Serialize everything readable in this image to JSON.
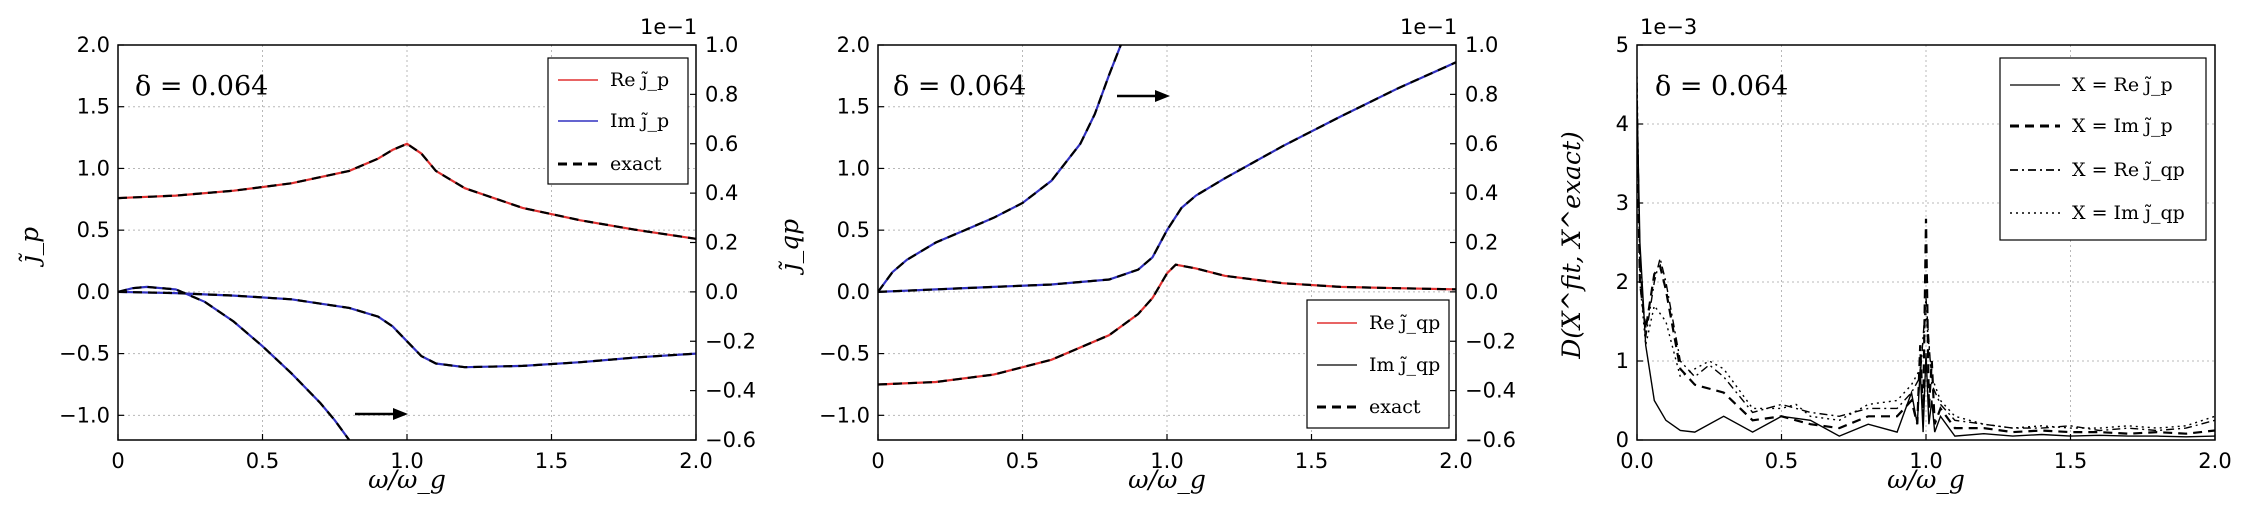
{
  "chart_data": [
    {
      "type": "line",
      "id": "jp",
      "annotation": "δ = 0.064",
      "xlabel": "ω/ω_g",
      "ylabel": "j̃_p",
      "xlim": [
        0,
        2.0
      ],
      "ylim": [
        -1.2,
        2.0
      ],
      "xticks": [
        "0",
        "0.5",
        "1.0",
        "1.5",
        "2.0"
      ],
      "yticks": [
        "−1.0",
        "−0.5",
        "0.0",
        "0.5",
        "1.0",
        "1.5",
        "2.0"
      ],
      "y2lim": [
        -0.6,
        1.0
      ],
      "y2ticks": [
        "−0.6",
        "−0.4",
        "−0.2",
        "0.0",
        "0.2",
        "0.4",
        "0.6",
        "0.8",
        "1.0"
      ],
      "y2_multiplier": "1e−1",
      "arrow": "right",
      "grid": true,
      "legend": {
        "position": "top-right",
        "entries": [
          "Re j̃_p",
          "Im j̃_p",
          "exact"
        ]
      },
      "series": [
        {
          "name": "Re j̃_p",
          "color": "#e03030",
          "axis": "left",
          "x": [
            0,
            0.2,
            0.4,
            0.6,
            0.8,
            0.9,
            0.95,
            1.0,
            1.05,
            1.1,
            1.2,
            1.4,
            1.6,
            1.8,
            2.0
          ],
          "y": [
            0.76,
            0.78,
            0.82,
            0.88,
            0.98,
            1.08,
            1.15,
            1.2,
            1.12,
            0.98,
            0.84,
            0.68,
            0.58,
            0.5,
            0.43
          ]
        },
        {
          "name": "Im j̃_p",
          "color": "#3030c0",
          "axis": "left",
          "x": [
            0,
            0.2,
            0.4,
            0.6,
            0.8,
            0.9,
            0.95,
            1.0,
            1.05,
            1.1,
            1.2,
            1.4,
            1.6,
            1.8,
            2.0
          ],
          "y": [
            0.0,
            -0.01,
            -0.03,
            -0.06,
            -0.13,
            -0.2,
            -0.28,
            -0.4,
            -0.52,
            -0.58,
            -0.61,
            -0.6,
            -0.57,
            -0.53,
            -0.5
          ]
        },
        {
          "name": "Im j̃_p (right axis)",
          "color": "#3030c0",
          "axis": "right",
          "x": [
            0,
            0.05,
            0.1,
            0.2,
            0.3,
            0.4,
            0.5,
            0.6,
            0.7,
            0.75,
            0.8
          ],
          "y": [
            0.0,
            0.015,
            0.02,
            0.01,
            -0.04,
            -0.12,
            -0.22,
            -0.33,
            -0.45,
            -0.52,
            -0.6
          ]
        }
      ]
    },
    {
      "type": "line",
      "id": "jqp",
      "annotation": "δ = 0.064",
      "xlabel": "ω/ω_g",
      "ylabel": "j̃_qp",
      "xlim": [
        0,
        2.0
      ],
      "ylim": [
        -1.2,
        2.0
      ],
      "xticks": [
        "0",
        "0.5",
        "1.0",
        "1.5",
        "2.0"
      ],
      "yticks": [
        "−1.0",
        "−0.5",
        "0.0",
        "0.5",
        "1.0",
        "1.5",
        "2.0"
      ],
      "y2lim": [
        -0.6,
        1.0
      ],
      "y2ticks": [
        "−0.6",
        "−0.4",
        "−0.2",
        "0.0",
        "0.2",
        "0.4",
        "0.6",
        "0.8",
        "1.0"
      ],
      "y2_multiplier": "1e−1",
      "arrow": "right",
      "grid": true,
      "legend": {
        "position": "bottom-right",
        "entries": [
          "Re j̃_qp",
          "Im j̃_qp",
          "exact"
        ]
      },
      "series": [
        {
          "name": "Re j̃_qp",
          "color": "#e03030",
          "axis": "left",
          "x": [
            0,
            0.2,
            0.4,
            0.6,
            0.8,
            0.9,
            0.95,
            1.0,
            1.03,
            1.1,
            1.2,
            1.4,
            1.6,
            1.8,
            2.0
          ],
          "y": [
            -0.75,
            -0.73,
            -0.67,
            -0.55,
            -0.35,
            -0.18,
            -0.05,
            0.15,
            0.22,
            0.19,
            0.13,
            0.07,
            0.04,
            0.03,
            0.02
          ]
        },
        {
          "name": "Im j̃_qp",
          "color": "#3030c0",
          "axis": "left",
          "x": [
            0,
            0.2,
            0.4,
            0.6,
            0.8,
            0.9,
            0.95,
            1.0,
            1.05,
            1.1,
            1.2,
            1.4,
            1.6,
            1.8,
            2.0
          ],
          "y": [
            0.0,
            0.02,
            0.04,
            0.06,
            0.1,
            0.18,
            0.28,
            0.5,
            0.68,
            0.78,
            0.92,
            1.18,
            1.42,
            1.65,
            1.86
          ]
        },
        {
          "name": "Im j̃_qp (right axis)",
          "color": "#3030c0",
          "axis": "right",
          "x": [
            0,
            0.05,
            0.1,
            0.2,
            0.3,
            0.4,
            0.5,
            0.6,
            0.7,
            0.75,
            0.8,
            0.84
          ],
          "y": [
            0.0,
            0.08,
            0.13,
            0.2,
            0.25,
            0.3,
            0.36,
            0.45,
            0.6,
            0.72,
            0.88,
            1.0
          ]
        }
      ]
    },
    {
      "type": "line",
      "id": "dist",
      "annotation": "δ = 0.064",
      "xlabel": "ω/ω_g",
      "ylabel": "D(X^fit, X^exact)",
      "xlim": [
        0,
        2.0
      ],
      "ylim": [
        0,
        5
      ],
      "xticks": [
        "0.0",
        "0.5",
        "1.0",
        "1.5",
        "2.0"
      ],
      "yticks": [
        "0",
        "1",
        "2",
        "3",
        "4",
        "5"
      ],
      "y_multiplier": "1e−3",
      "grid": true,
      "legend": {
        "position": "top-right",
        "entries": [
          "X = Re j̃_p",
          "X = Im j̃_p",
          "X = Re j̃_qp",
          "X = Im j̃_qp"
        ]
      },
      "series": [
        {
          "name": "X = Re j̃_p",
          "dash": "solid",
          "x": [
            0,
            0.01,
            0.03,
            0.06,
            0.1,
            0.15,
            0.2,
            0.3,
            0.4,
            0.5,
            0.6,
            0.7,
            0.8,
            0.9,
            0.95,
            0.97,
            0.98,
            0.99,
            1.0,
            1.01,
            1.02,
            1.03,
            1.05,
            1.1,
            1.2,
            1.3,
            1.4,
            1.5,
            1.6,
            1.7,
            1.8,
            1.9,
            2.0
          ],
          "y": [
            4.3,
            2.5,
            1.2,
            0.5,
            0.25,
            0.12,
            0.1,
            0.3,
            0.1,
            0.3,
            0.25,
            0.05,
            0.2,
            0.1,
            0.6,
            0.2,
            0.9,
            0.1,
            1.1,
            0.2,
            0.5,
            0.1,
            0.3,
            0.05,
            0.08,
            0.05,
            0.07,
            0.05,
            0.06,
            0.05,
            0.05,
            0.04,
            0.05
          ]
        },
        {
          "name": "X = Im j̃_p",
          "dash": "dashed",
          "x": [
            0,
            0.01,
            0.03,
            0.06,
            0.08,
            0.1,
            0.15,
            0.2,
            0.3,
            0.4,
            0.5,
            0.6,
            0.7,
            0.8,
            0.9,
            0.95,
            0.97,
            0.98,
            0.99,
            1.0,
            1.01,
            1.02,
            1.03,
            1.05,
            1.1,
            1.2,
            1.3,
            1.4,
            1.5,
            1.6,
            1.7,
            1.8,
            1.9,
            2.0
          ],
          "y": [
            4.0,
            2.0,
            1.4,
            2.1,
            2.2,
            1.9,
            0.9,
            0.7,
            0.6,
            0.25,
            0.3,
            0.2,
            0.15,
            0.3,
            0.3,
            0.5,
            0.2,
            1.2,
            0.3,
            2.8,
            0.4,
            1.0,
            0.2,
            0.4,
            0.15,
            0.15,
            0.1,
            0.12,
            0.1,
            0.1,
            0.08,
            0.1,
            0.08,
            0.12
          ]
        },
        {
          "name": "X = Re j̃_qp",
          "dash": "dashdot",
          "x": [
            0,
            0.01,
            0.03,
            0.06,
            0.08,
            0.1,
            0.15,
            0.2,
            0.25,
            0.3,
            0.4,
            0.5,
            0.6,
            0.7,
            0.8,
            0.9,
            0.95,
            0.98,
            1.0,
            1.02,
            1.05,
            1.1,
            1.2,
            1.3,
            1.4,
            1.5,
            1.6,
            1.7,
            1.8,
            1.9,
            2.0
          ],
          "y": [
            4.5,
            2.2,
            1.3,
            2.0,
            2.3,
            2.0,
            1.0,
            0.8,
            0.95,
            0.8,
            0.35,
            0.45,
            0.35,
            0.3,
            0.4,
            0.4,
            0.6,
            0.8,
            1.8,
            0.7,
            0.45,
            0.25,
            0.2,
            0.15,
            0.15,
            0.18,
            0.12,
            0.15,
            0.12,
            0.15,
            0.25
          ]
        },
        {
          "name": "X = Im j̃_qp",
          "dash": "dotted",
          "x": [
            0,
            0.01,
            0.03,
            0.06,
            0.1,
            0.15,
            0.2,
            0.25,
            0.3,
            0.4,
            0.5,
            0.55,
            0.6,
            0.7,
            0.8,
            0.9,
            0.95,
            0.98,
            1.0,
            1.02,
            1.05,
            1.1,
            1.2,
            1.3,
            1.4,
            1.5,
            1.6,
            1.7,
            1.8,
            1.9,
            2.0
          ],
          "y": [
            4.6,
            2.0,
            1.2,
            1.7,
            1.5,
            0.8,
            0.9,
            1.0,
            0.9,
            0.4,
            0.4,
            0.45,
            0.3,
            0.25,
            0.45,
            0.5,
            0.7,
            0.9,
            1.6,
            0.8,
            0.5,
            0.3,
            0.2,
            0.15,
            0.18,
            0.15,
            0.15,
            0.18,
            0.15,
            0.18,
            0.3
          ]
        }
      ]
    }
  ]
}
